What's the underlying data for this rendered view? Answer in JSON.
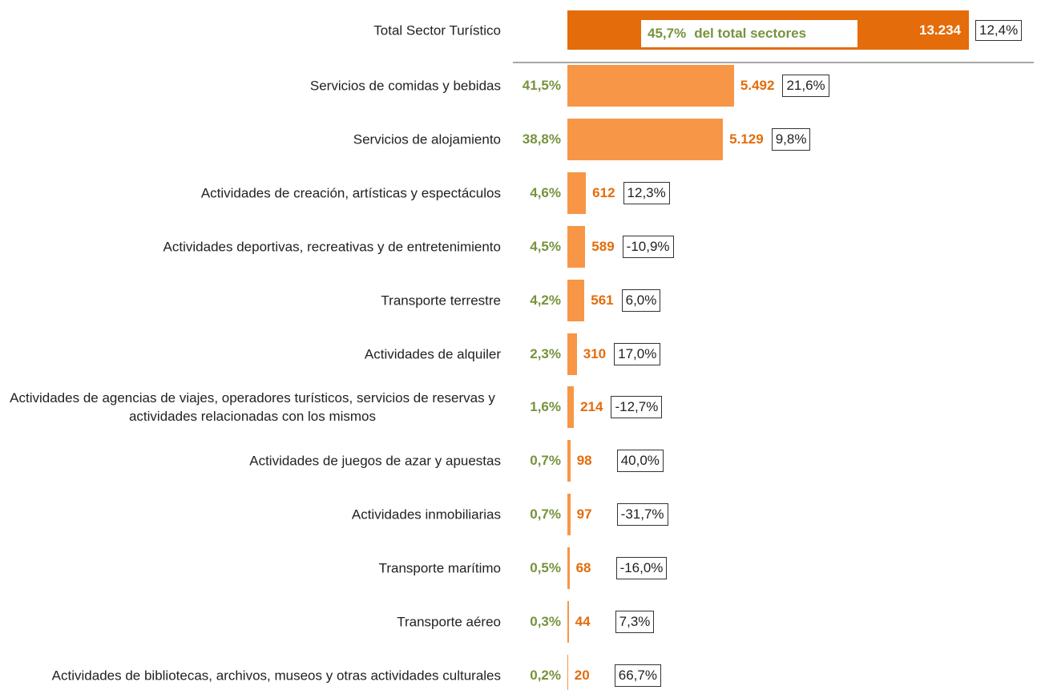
{
  "chart_data": {
    "type": "bar",
    "total": {
      "category": "Total Sector Turístico",
      "value": 13234,
      "value_label": "13.234",
      "share": {
        "value": 45.7,
        "label": "45,7%"
      },
      "share_note": "del total sectores",
      "change": {
        "value": 12.4,
        "label": "12,4%"
      },
      "color": "#e46c0a"
    },
    "categories": [
      "Servicios de comidas y bebidas",
      "Servicios de alojamiento",
      "Actividades de creación, artísticas y espectáculos",
      "Actividades deportivas, recreativas y de entretenimiento",
      "Transporte terrestre",
      "Actividades de alquiler",
      "Actividades de agencias de viajes, operadores turísticos, servicios de reservas y actividades relacionadas con los mismos",
      "Actividades de juegos de azar y apuestas",
      "Actividades inmobiliarias",
      "Transporte marítimo",
      "Transporte aéreo",
      "Actividades de bibliotecas, archivos, museos y otras actividades culturales"
    ],
    "values": [
      5492,
      5129,
      612,
      589,
      561,
      310,
      214,
      98,
      97,
      68,
      44,
      20
    ],
    "value_labels": [
      "5.492",
      "5.129",
      "612",
      "589",
      "561",
      "310",
      "214",
      "98",
      "97",
      "68",
      "44",
      "20"
    ],
    "shares": [
      {
        "value": 41.5,
        "label": "41,5%"
      },
      {
        "value": 38.8,
        "label": "38,8%"
      },
      {
        "value": 4.6,
        "label": "4,6%"
      },
      {
        "value": 4.5,
        "label": "4,5%"
      },
      {
        "value": 4.2,
        "label": "4,2%"
      },
      {
        "value": 2.3,
        "label": "2,3%"
      },
      {
        "value": 1.6,
        "label": "1,6%"
      },
      {
        "value": 0.7,
        "label": "0,7%"
      },
      {
        "value": 0.7,
        "label": "0,7%"
      },
      {
        "value": 0.5,
        "label": "0,5%"
      },
      {
        "value": 0.3,
        "label": "0,3%"
      },
      {
        "value": 0.2,
        "label": "0,2%"
      }
    ],
    "changes": [
      {
        "value": 21.6,
        "label": "21,6%"
      },
      {
        "value": 9.8,
        "label": "9,8%"
      },
      {
        "value": 12.3,
        "label": "12,3%"
      },
      {
        "value": -10.9,
        "label": "-10,9%"
      },
      {
        "value": 6.0,
        "label": "6,0%"
      },
      {
        "value": 17.0,
        "label": "17,0%"
      },
      {
        "value": -12.7,
        "label": "-12,7%"
      },
      {
        "value": 40.0,
        "label": "40,0%"
      },
      {
        "value": -31.7,
        "label": "-31,7%"
      },
      {
        "value": -16.0,
        "label": "-16,0%"
      },
      {
        "value": 7.3,
        "label": "7,3%"
      },
      {
        "value": 66.7,
        "label": "66,7%"
      }
    ],
    "color": "#f79646",
    "share_color": "#77933c",
    "value_color": "#e46c0a"
  }
}
